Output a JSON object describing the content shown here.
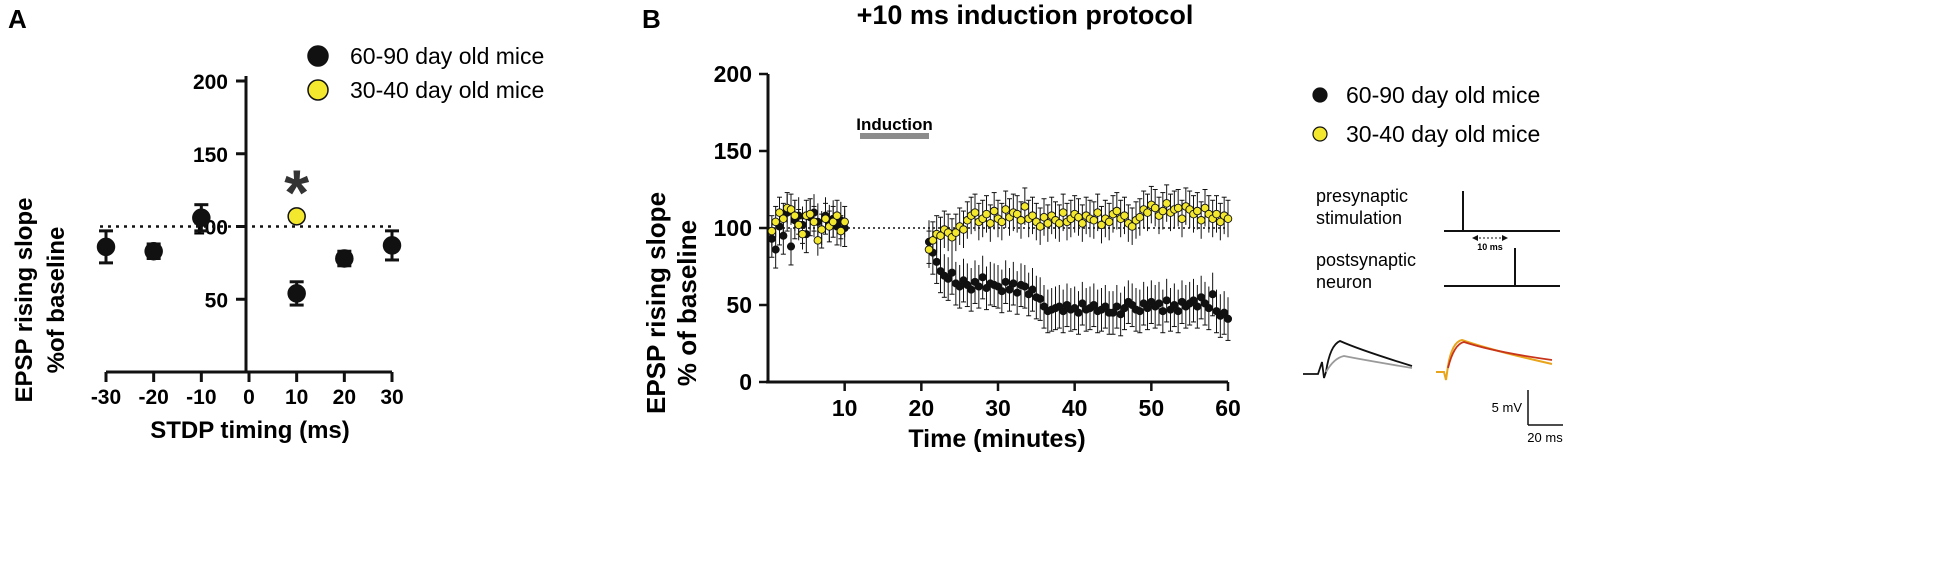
{
  "colors": {
    "black": "#111111",
    "yellow": "#f3e82e",
    "induction_bar": "#8c8c8c",
    "trace_gray": "#9a9a9a",
    "trace_orange": "#e8a41a",
    "trace_red": "#c8341b"
  },
  "panel_a": {
    "label": "A",
    "legend": [
      "60-90 day old mice",
      "30-40 day old mice"
    ],
    "significance": "*"
  },
  "panel_b": {
    "label": "B",
    "title": "+10 ms induction protocol",
    "induction_label": "Induction",
    "legend": [
      "60-90 day old mice",
      "30-40 day old mice"
    ],
    "schematic": {
      "pre_label_1": "presynaptic",
      "pre_label_2": "stimulation",
      "interval_label": "10 ms",
      "post_label_1": "postsynaptic",
      "post_label_2": "neuron"
    },
    "scalebar": {
      "y_label": "5 mV",
      "x_label": "20 ms"
    }
  },
  "chart_data": [
    {
      "type": "scatter",
      "panel": "A",
      "xlabel": "STDP timing (ms)",
      "ylabel_line1": "EPSP rising slope",
      "ylabel_line2": "%of baseline",
      "xlim": [
        -30,
        30
      ],
      "ylim": [
        0,
        200
      ],
      "xticks": [
        -30,
        -20,
        -10,
        0,
        10,
        20,
        30
      ],
      "xtick_labels": [
        "-30",
        "-20",
        "-10",
        "0",
        "10",
        "20",
        "30"
      ],
      "yticks": [
        50,
        100,
        150,
        200
      ],
      "ytick_labels": [
        "50",
        "100",
        "150",
        "200"
      ],
      "baseline": 100,
      "series": [
        {
          "name": "60-90 day old mice",
          "color": "#111111",
          "x": [
            -30,
            -20,
            -10,
            10,
            20,
            30
          ],
          "y": [
            86,
            83,
            106,
            54,
            78,
            87
          ],
          "err": [
            11,
            5,
            9,
            8,
            5,
            10
          ]
        },
        {
          "name": "30-40 day old mice",
          "color": "#f3e82e",
          "x": [
            10
          ],
          "y": [
            107
          ],
          "err": [
            0
          ]
        }
      ],
      "annotations": [
        {
          "text": "*",
          "x": 10,
          "y": 140
        }
      ]
    },
    {
      "type": "scatter",
      "panel": "B",
      "title": "+10 ms induction protocol",
      "xlabel": "Time (minutes)",
      "ylabel_line1": "EPSP rising slope",
      "ylabel_line2": "% of baseline",
      "xlim": [
        0,
        60
      ],
      "ylim": [
        0,
        200
      ],
      "xticks": [
        10,
        20,
        30,
        40,
        50,
        60
      ],
      "xtick_labels": [
        "10",
        "20",
        "30",
        "40",
        "50",
        "60"
      ],
      "yticks": [
        0,
        50,
        100,
        150,
        200
      ],
      "ytick_labels": [
        "0",
        "50",
        "100",
        "150",
        "200"
      ],
      "baseline": 100,
      "induction_window": [
        12,
        21
      ],
      "series": [
        {
          "name": "60-90 day old mice",
          "color": "#111111",
          "x": [
            0.5,
            1,
            1.5,
            2,
            2.5,
            3,
            3.5,
            4,
            4.5,
            5,
            5.5,
            6,
            6.5,
            7,
            7.5,
            8,
            8.5,
            9,
            9.5,
            10,
            21,
            21.5,
            22,
            22.5,
            23,
            23.5,
            24,
            24.5,
            25,
            25.5,
            26,
            26.5,
            27,
            27.5,
            28,
            28.5,
            29,
            29.5,
            30,
            30.5,
            31,
            31.5,
            32,
            32.5,
            33,
            33.5,
            34,
            34.5,
            35,
            35.5,
            36,
            36.5,
            37,
            37.5,
            38,
            38.5,
            39,
            39.5,
            40,
            40.5,
            41,
            41.5,
            42,
            42.5,
            43,
            43.5,
            44,
            44.5,
            45,
            45.5,
            46,
            46.5,
            47,
            47.5,
            48,
            48.5,
            49,
            49.5,
            50,
            50.5,
            51,
            51.5,
            52,
            52.5,
            53,
            53.5,
            54,
            54.5,
            55,
            55.5,
            56,
            56.5,
            57,
            57.5,
            58,
            58.5,
            59,
            59.5,
            60
          ],
          "y": [
            93,
            86,
            101,
            95,
            110,
            88,
            105,
            108,
            102,
            96,
            107,
            110,
            104,
            99,
            108,
            103,
            106,
            101,
            105,
            100,
            91,
            84,
            78,
            72,
            69,
            67,
            71,
            64,
            62,
            66,
            63,
            60,
            65,
            62,
            68,
            61,
            64,
            63,
            62,
            59,
            65,
            60,
            64,
            58,
            63,
            62,
            57,
            60,
            55,
            54,
            49,
            46,
            47,
            48,
            49,
            46,
            50,
            47,
            48,
            45,
            51,
            47,
            48,
            50,
            46,
            47,
            49,
            45,
            45,
            49,
            44,
            48,
            52,
            50,
            47,
            46,
            51,
            48,
            52,
            49,
            51,
            46,
            53,
            47,
            50,
            46,
            52,
            49,
            51,
            53,
            49,
            55,
            51,
            48,
            57,
            46,
            43,
            45,
            41
          ],
          "err": [
            12,
            12,
            12,
            12,
            12,
            12,
            12,
            12,
            12,
            12,
            12,
            12,
            12,
            12,
            12,
            12,
            12,
            12,
            12,
            12,
            14,
            14,
            14,
            14,
            14,
            14,
            14,
            14,
            14,
            14,
            14,
            14,
            14,
            14,
            14,
            14,
            14,
            14,
            14,
            14,
            14,
            14,
            14,
            14,
            14,
            14,
            14,
            14,
            14,
            14,
            14,
            14,
            14,
            14,
            14,
            14,
            14,
            14,
            14,
            14,
            14,
            14,
            14,
            14,
            14,
            14,
            14,
            14,
            14,
            14,
            14,
            14,
            14,
            14,
            14,
            14,
            14,
            14,
            14,
            14,
            14,
            14,
            14,
            14,
            14,
            14,
            14,
            14,
            14,
            14,
            14,
            14,
            14,
            14,
            14,
            14,
            14,
            14,
            14
          ]
        },
        {
          "name": "30-40 day old mice",
          "color": "#f3e82e",
          "x": [
            0.5,
            1,
            1.5,
            2,
            2.5,
            3,
            3.5,
            4,
            4.5,
            5,
            5.5,
            6,
            6.5,
            7,
            7.5,
            8,
            8.5,
            9,
            9.5,
            10,
            21,
            21.5,
            22,
            22.5,
            23,
            23.5,
            24,
            24.5,
            25,
            25.5,
            26,
            26.5,
            27,
            27.5,
            28,
            28.5,
            29,
            29.5,
            30,
            30.5,
            31,
            31.5,
            32,
            32.5,
            33,
            33.5,
            34,
            34.5,
            35,
            35.5,
            36,
            36.5,
            37,
            37.5,
            38,
            38.5,
            39,
            39.5,
            40,
            40.5,
            41,
            41.5,
            42,
            42.5,
            43,
            43.5,
            44,
            44.5,
            45,
            45.5,
            46,
            46.5,
            47,
            47.5,
            48,
            48.5,
            49,
            49.5,
            50,
            50.5,
            51,
            51.5,
            52,
            52.5,
            53,
            53.5,
            54,
            54.5,
            55,
            55.5,
            56,
            56.5,
            57,
            57.5,
            58,
            58.5,
            59,
            59.5,
            60
          ],
          "y": [
            98,
            104,
            110,
            106,
            113,
            112,
            108,
            102,
            96,
            108,
            109,
            104,
            92,
            99,
            106,
            101,
            104,
            108,
            98,
            104,
            86,
            92,
            96,
            95,
            99,
            97,
            94,
            97,
            101,
            99,
            105,
            108,
            110,
            104,
            106,
            109,
            103,
            111,
            106,
            104,
            112,
            107,
            110,
            109,
            105,
            114,
            106,
            108,
            104,
            101,
            107,
            103,
            108,
            105,
            103,
            110,
            104,
            106,
            109,
            107,
            103,
            108,
            106,
            105,
            110,
            102,
            106,
            104,
            109,
            111,
            106,
            108,
            103,
            101,
            105,
            107,
            112,
            110,
            115,
            113,
            108,
            111,
            116,
            110,
            112,
            113,
            106,
            114,
            112,
            109,
            111,
            105,
            113,
            109,
            106,
            109,
            104,
            108,
            106
          ],
          "err": [
            10,
            10,
            10,
            10,
            10,
            10,
            10,
            10,
            10,
            10,
            10,
            10,
            10,
            10,
            10,
            10,
            10,
            10,
            10,
            10,
            12,
            12,
            12,
            12,
            12,
            12,
            12,
            12,
            12,
            12,
            12,
            12,
            12,
            12,
            12,
            12,
            12,
            12,
            12,
            12,
            12,
            12,
            12,
            12,
            12,
            12,
            12,
            12,
            12,
            12,
            12,
            12,
            12,
            12,
            12,
            12,
            12,
            12,
            12,
            12,
            12,
            12,
            12,
            12,
            12,
            12,
            12,
            12,
            12,
            12,
            12,
            12,
            12,
            12,
            12,
            12,
            12,
            12,
            12,
            12,
            12,
            12,
            12,
            12,
            12,
            12,
            12,
            12,
            12,
            12,
            12,
            12,
            12,
            12,
            12,
            12,
            12,
            12,
            12
          ]
        }
      ]
    }
  ]
}
